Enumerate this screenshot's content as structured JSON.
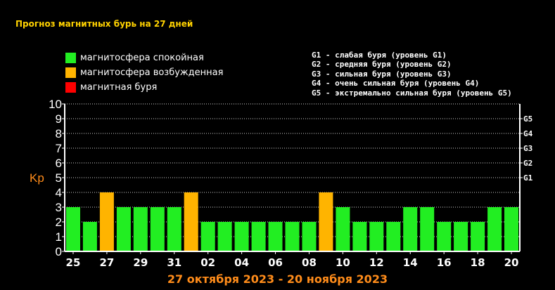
{
  "title": "Прогноз магнитных бурь на 27 дней",
  "legend": [
    {
      "label": "магнитосфера спокойная",
      "color": "#22ee22"
    },
    {
      "label": "магнитосфера возбужденная",
      "color": "#ffb400"
    },
    {
      "label": "магнитная буря",
      "color": "#ff0000"
    }
  ],
  "g_legend": [
    "G1 - слабая буря (уровень G1)",
    "G2 - средняя буря (уровень G2)",
    "G3 - сильная буря (уровень G3)",
    "G4 - очень сильная буря (уровень G4)",
    "G5 - экстремально сильная буря (уровень G5)"
  ],
  "date_range": "27 октября 2023 - 20 ноября 2023",
  "chart_data": {
    "type": "bar",
    "ylabel": "Kp",
    "ylim": [
      0,
      10
    ],
    "yticks": [
      "0",
      "1",
      "2",
      "3",
      "4",
      "5",
      "6",
      "7",
      "8",
      "9",
      "10"
    ],
    "g_levels": [
      {
        "label": "G1",
        "value": 5
      },
      {
        "label": "G2",
        "value": 6
      },
      {
        "label": "G3",
        "value": 7
      },
      {
        "label": "G4",
        "value": 8
      },
      {
        "label": "G5",
        "value": 9
      }
    ],
    "grid": true,
    "xticks": [
      "25",
      "27",
      "29",
      "31",
      "02",
      "04",
      "06",
      "08",
      "10",
      "12",
      "14",
      "16",
      "18",
      "20"
    ],
    "values": [
      3,
      2,
      4,
      3,
      3,
      3,
      3,
      4,
      2,
      2,
      2,
      2,
      2,
      2,
      2,
      4,
      3,
      2,
      2,
      2,
      3,
      3,
      2,
      2,
      2,
      3,
      3
    ],
    "colors": {
      "calm": "#22ee22",
      "excited": "#ffb400",
      "storm": "#ff0000"
    }
  }
}
